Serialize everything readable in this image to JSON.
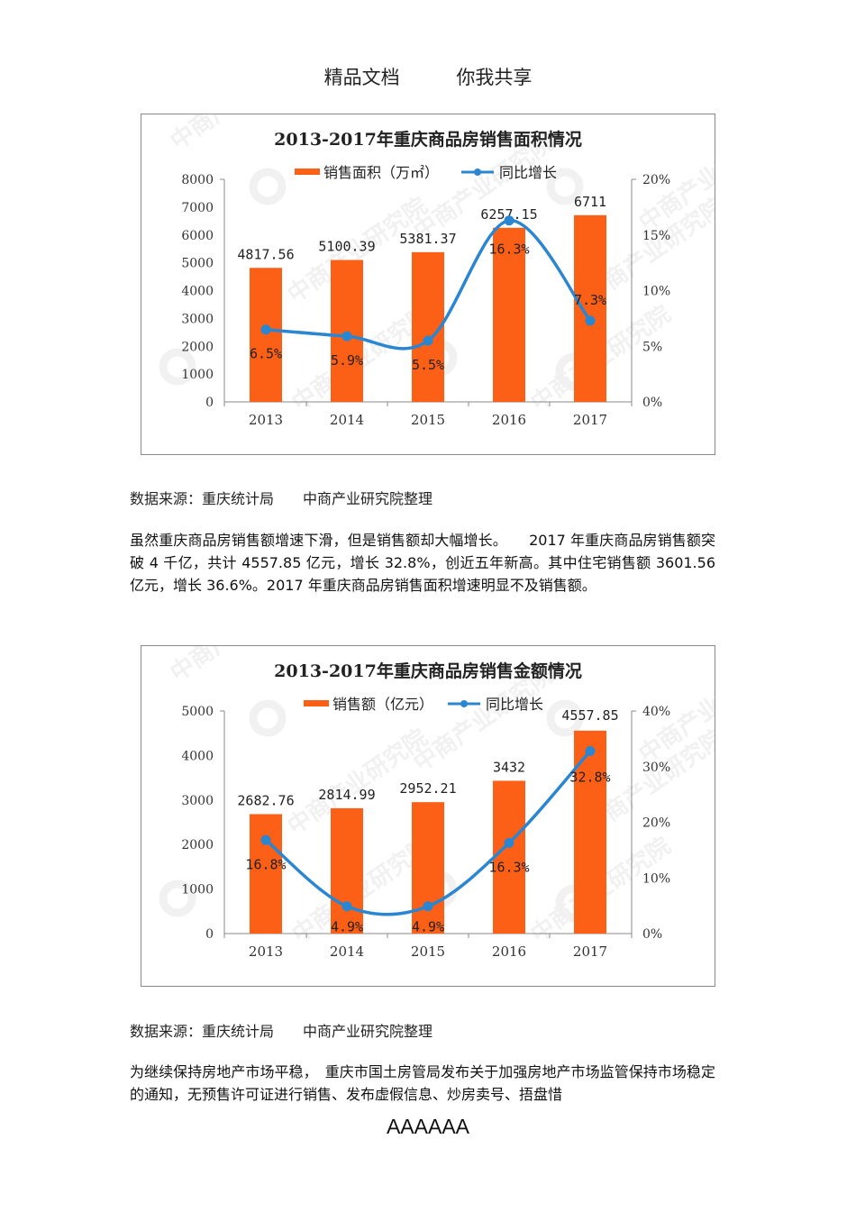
{
  "header": {
    "left": "精品文档",
    "right": "你我共享"
  },
  "colors": {
    "bar": "#fc5f16",
    "line": "#2a86d1",
    "axis": "#888888",
    "frame": "#8a8a8a",
    "watermark": "#e6e6e6"
  },
  "watermark": {
    "text": "中商产业研究院",
    "url": "www.askci.com/reports/"
  },
  "chart_data": [
    {
      "type": "bar",
      "title": "2013-2017年重庆商品房销售面积情况",
      "categories": [
        "2013",
        "2014",
        "2015",
        "2016",
        "2017"
      ],
      "series": [
        {
          "name": "销售面积（万㎡）",
          "type": "bar",
          "axis": "left",
          "values": [
            4817.56,
            5100.39,
            5381.37,
            6257.15,
            6711
          ],
          "labels": [
            "4817.56",
            "5100.39",
            "5381.37",
            "6257.15",
            "6711"
          ]
        },
        {
          "name": "同比增长",
          "type": "line",
          "axis": "right",
          "values": [
            6.5,
            5.9,
            5.5,
            16.3,
            7.3
          ],
          "labels": [
            "6.5%",
            "5.9%",
            "5.5%",
            "16.3%",
            "7.3%"
          ]
        }
      ],
      "left_axis": {
        "ticks": [
          "0",
          "1000",
          "2000",
          "3000",
          "4000",
          "5000",
          "6000",
          "7000",
          "8000"
        ],
        "ylim": [
          0,
          8000
        ]
      },
      "right_axis": {
        "ticks": [
          "0%",
          "5%",
          "10%",
          "15%",
          "20%"
        ],
        "ylim": [
          0,
          20
        ]
      },
      "legend_position": "top",
      "grid": false
    },
    {
      "type": "bar",
      "title": "2013-2017年重庆商品房销售金额情况",
      "categories": [
        "2013",
        "2014",
        "2015",
        "2016",
        "2017"
      ],
      "series": [
        {
          "name": "销售额（亿元）",
          "type": "bar",
          "axis": "left",
          "values": [
            2682.76,
            2814.99,
            2952.21,
            3432,
            4557.85
          ],
          "labels": [
            "2682.76",
            "2814.99",
            "2952.21",
            "3432",
            "4557.85"
          ]
        },
        {
          "name": "同比增长",
          "type": "line",
          "axis": "right",
          "values": [
            16.8,
            4.9,
            4.9,
            16.3,
            32.8
          ],
          "labels": [
            "16.8%",
            "4.9%",
            "4.9%",
            "16.3%",
            "32.8%"
          ]
        }
      ],
      "left_axis": {
        "ticks": [
          "0",
          "1000",
          "2000",
          "3000",
          "4000",
          "5000"
        ],
        "ylim": [
          0,
          5000
        ]
      },
      "right_axis": {
        "ticks": [
          "0%",
          "10%",
          "20%",
          "30%",
          "40%"
        ],
        "ylim": [
          0,
          40
        ]
      },
      "legend_position": "top",
      "grid": false
    }
  ],
  "source1": "数据来源：重庆统计局　　中商产业研究院整理",
  "paragraph1": "虽然重庆商品房销售额增速下滑，但是销售额却大幅增长。　　2017 年重庆商品房销售额突破 4 千亿，共计 4557.85 亿元，增长 32.8%，创近五年新高。其中住宅销售额 3601.56 亿元，增长 36.6%。2017 年重庆商品房销售面积增速明显不及销售额。",
  "source2": "数据来源：重庆统计局　　中商产业研究院整理",
  "paragraph2": "为继续保持房地产市场平稳，　重庆市国土房管局发布关于加强房地产市场监管保持市场稳定的通知，无预售许可证进行销售、发布虚假信息、炒房卖号、捂盘惜",
  "footer": "AAAAAA"
}
